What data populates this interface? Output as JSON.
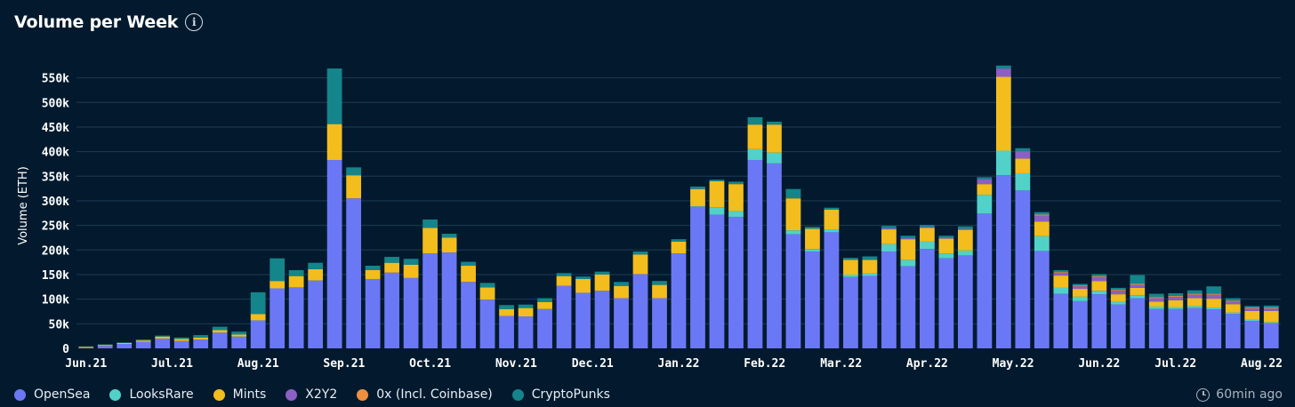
{
  "header": {
    "title": "Volume per Week",
    "info_icon": "info-icon"
  },
  "updated": {
    "text": "60min ago",
    "icon": "clock-icon"
  },
  "colors": {
    "background": "#031a2e",
    "grid": "#1e3a52",
    "axis_text": "#ffffff"
  },
  "chart_data": {
    "type": "bar",
    "stacked": true,
    "title": "Volume per Week",
    "xlabel": "",
    "ylabel": "Volume (ETH)",
    "ylim": [
      0,
      580000
    ],
    "yticks": [
      0,
      50000,
      100000,
      150000,
      200000,
      250000,
      300000,
      350000,
      400000,
      450000,
      500000,
      550000
    ],
    "ytick_labels": [
      "0",
      "50k",
      "100k",
      "150k",
      "200k",
      "250k",
      "300k",
      "350k",
      "400k",
      "450k",
      "500k",
      "550k"
    ],
    "grid": true,
    "legend_position": "bottom-left",
    "month_ticks": [
      {
        "label": "Jun.21",
        "index": 0
      },
      {
        "label": "Jul.21",
        "index": 4.5
      },
      {
        "label": "Aug.21",
        "index": 9
      },
      {
        "label": "Sep.21",
        "index": 13.5
      },
      {
        "label": "Oct.21",
        "index": 18
      },
      {
        "label": "Nov.21",
        "index": 22.5
      },
      {
        "label": "Dec.21",
        "index": 26.5
      },
      {
        "label": "Jan.22",
        "index": 31
      },
      {
        "label": "Feb.22",
        "index": 35.5
      },
      {
        "label": "Mar.22",
        "index": 39.5
      },
      {
        "label": "Apr.22",
        "index": 44
      },
      {
        "label": "May.22",
        "index": 48.5
      },
      {
        "label": "Jun.22",
        "index": 53
      },
      {
        "label": "Jul.22",
        "index": 57
      },
      {
        "label": "Aug.22",
        "index": 61.5
      }
    ],
    "series": [
      {
        "name": "OpenSea",
        "color": "#6b78f6",
        "values": [
          1000,
          5000,
          9000,
          13000,
          20000,
          15000,
          18000,
          32000,
          24000,
          57000,
          122000,
          124000,
          138000,
          383000,
          305000,
          141000,
          154000,
          143000,
          193000,
          195000,
          135000,
          99000,
          66000,
          65000,
          80000,
          127000,
          113000,
          117000,
          102000,
          151000,
          102000,
          193000,
          288000,
          272000,
          267000,
          383000,
          376000,
          232000,
          197000,
          236000,
          145000,
          147000,
          197000,
          167000,
          202000,
          183000,
          189000,
          274000,
          352000,
          321000,
          198000,
          111000,
          96000,
          110000,
          89000,
          102000,
          80000,
          80000,
          82000,
          79000,
          70000,
          56000,
          51000
        ]
      },
      {
        "name": "LooksRare",
        "color": "#52d1c8",
        "values": [
          0,
          0,
          0,
          0,
          0,
          0,
          0,
          0,
          0,
          0,
          0,
          0,
          0,
          0,
          0,
          0,
          0,
          0,
          0,
          0,
          0,
          0,
          0,
          0,
          0,
          0,
          0,
          0,
          0,
          0,
          0,
          0,
          1000,
          15000,
          12000,
          22000,
          22000,
          8000,
          5000,
          6000,
          5000,
          5000,
          15000,
          13000,
          15000,
          10000,
          10000,
          38000,
          50000,
          35000,
          30000,
          12000,
          9000,
          7000,
          6000,
          6000,
          5000,
          4000,
          4000,
          4000,
          3000,
          2000,
          2000
        ]
      },
      {
        "name": "Mints",
        "color": "#f2bd1d",
        "values": [
          2000,
          2000,
          2000,
          3000,
          4000,
          4000,
          4000,
          5000,
          4000,
          13000,
          15000,
          23000,
          23000,
          73000,
          47000,
          18000,
          20000,
          27000,
          52000,
          30000,
          33000,
          25000,
          14000,
          17000,
          14000,
          20000,
          28000,
          33000,
          25000,
          40000,
          27000,
          24000,
          35000,
          53000,
          55000,
          50000,
          57000,
          65000,
          41000,
          40000,
          30000,
          28000,
          30000,
          42000,
          28000,
          30000,
          42000,
          22000,
          150000,
          30000,
          30000,
          25000,
          16000,
          20000,
          15000,
          15000,
          10000,
          14000,
          16000,
          18000,
          17000,
          18000,
          23000
        ]
      },
      {
        "name": "X2Y2",
        "color": "#8c5fc4",
        "values": [
          0,
          0,
          0,
          0,
          0,
          0,
          0,
          0,
          0,
          0,
          0,
          0,
          0,
          0,
          0,
          0,
          0,
          0,
          0,
          0,
          0,
          0,
          0,
          0,
          0,
          0,
          0,
          0,
          0,
          0,
          0,
          0,
          0,
          0,
          0,
          0,
          0,
          0,
          0,
          0,
          0,
          0,
          2000,
          2000,
          2000,
          2000,
          2000,
          10000,
          17000,
          15000,
          12000,
          5000,
          5000,
          8000,
          7000,
          6000,
          7000,
          7000,
          7000,
          8000,
          5000,
          5000,
          5000
        ]
      },
      {
        "name": "0x (Incl. Coinbase)",
        "color": "#f08f3e",
        "values": [
          0,
          0,
          0,
          0,
          0,
          0,
          0,
          0,
          0,
          0,
          0,
          0,
          0,
          0,
          0,
          0,
          0,
          0,
          0,
          0,
          0,
          0,
          0,
          0,
          0,
          0,
          0,
          0,
          0,
          0,
          0,
          0,
          0,
          0,
          0,
          0,
          0,
          0,
          0,
          0,
          0,
          0,
          0,
          0,
          0,
          0,
          0,
          0,
          0,
          0,
          2000,
          2000,
          2000,
          2000,
          2000,
          2000,
          2000,
          2000,
          2000,
          2000,
          2000,
          2000,
          2000
        ]
      },
      {
        "name": "CryptoPunks",
        "color": "#14858a",
        "values": [
          1000,
          1000,
          1000,
          2000,
          2000,
          3000,
          5000,
          7000,
          6000,
          44000,
          46000,
          12000,
          13000,
          113000,
          16000,
          9000,
          12000,
          12000,
          17000,
          8000,
          8000,
          9000,
          8000,
          7000,
          8000,
          6000,
          5000,
          6000,
          8000,
          6000,
          8000,
          5000,
          5000,
          3000,
          5000,
          15000,
          6000,
          19000,
          4000,
          4000,
          4000,
          7000,
          5000,
          5000,
          4000,
          4000,
          5000,
          4000,
          6000,
          6000,
          5000,
          4000,
          3000,
          4000,
          4000,
          18000,
          7000,
          5000,
          7000,
          15000,
          5000,
          3000,
          4000
        ]
      }
    ]
  }
}
